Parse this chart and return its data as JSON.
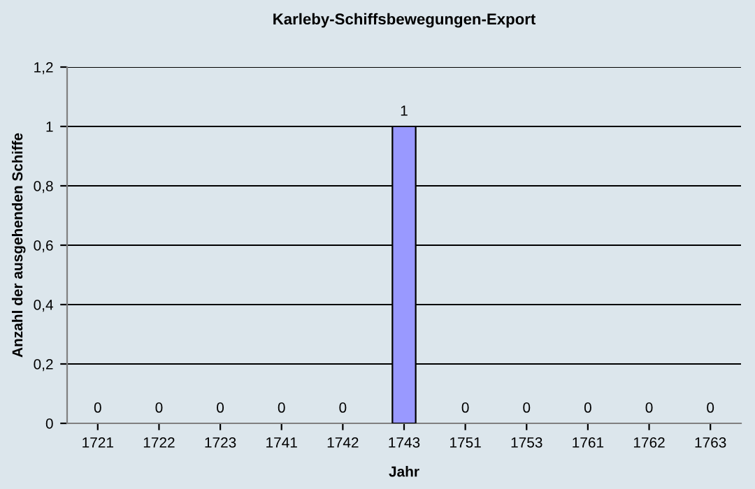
{
  "chart_data": {
    "type": "bar",
    "title": "Karleby-Schiffsbewegungen-Export",
    "xlabel": "Jahr",
    "ylabel": "Anzahl der ausgehenden Schiffe",
    "categories": [
      "1721",
      "1722",
      "1723",
      "1741",
      "1742",
      "1743",
      "1751",
      "1753",
      "1761",
      "1762",
      "1763"
    ],
    "values": [
      0,
      0,
      0,
      0,
      0,
      1,
      0,
      0,
      0,
      0,
      0
    ],
    "color": "#9999ff",
    "ylim": [
      0,
      1.2
    ],
    "yticks": [
      0,
      {
        "value": 0.2,
        "label": "0,2"
      },
      {
        "value": 0.4,
        "label": "0,4"
      },
      {
        "value": 0.6,
        "label": "0,6"
      },
      {
        "value": 0.8,
        "label": "0,8"
      },
      1,
      {
        "value": 1.2,
        "label": "1,2"
      }
    ],
    "grid": "y",
    "data_labels": true
  }
}
